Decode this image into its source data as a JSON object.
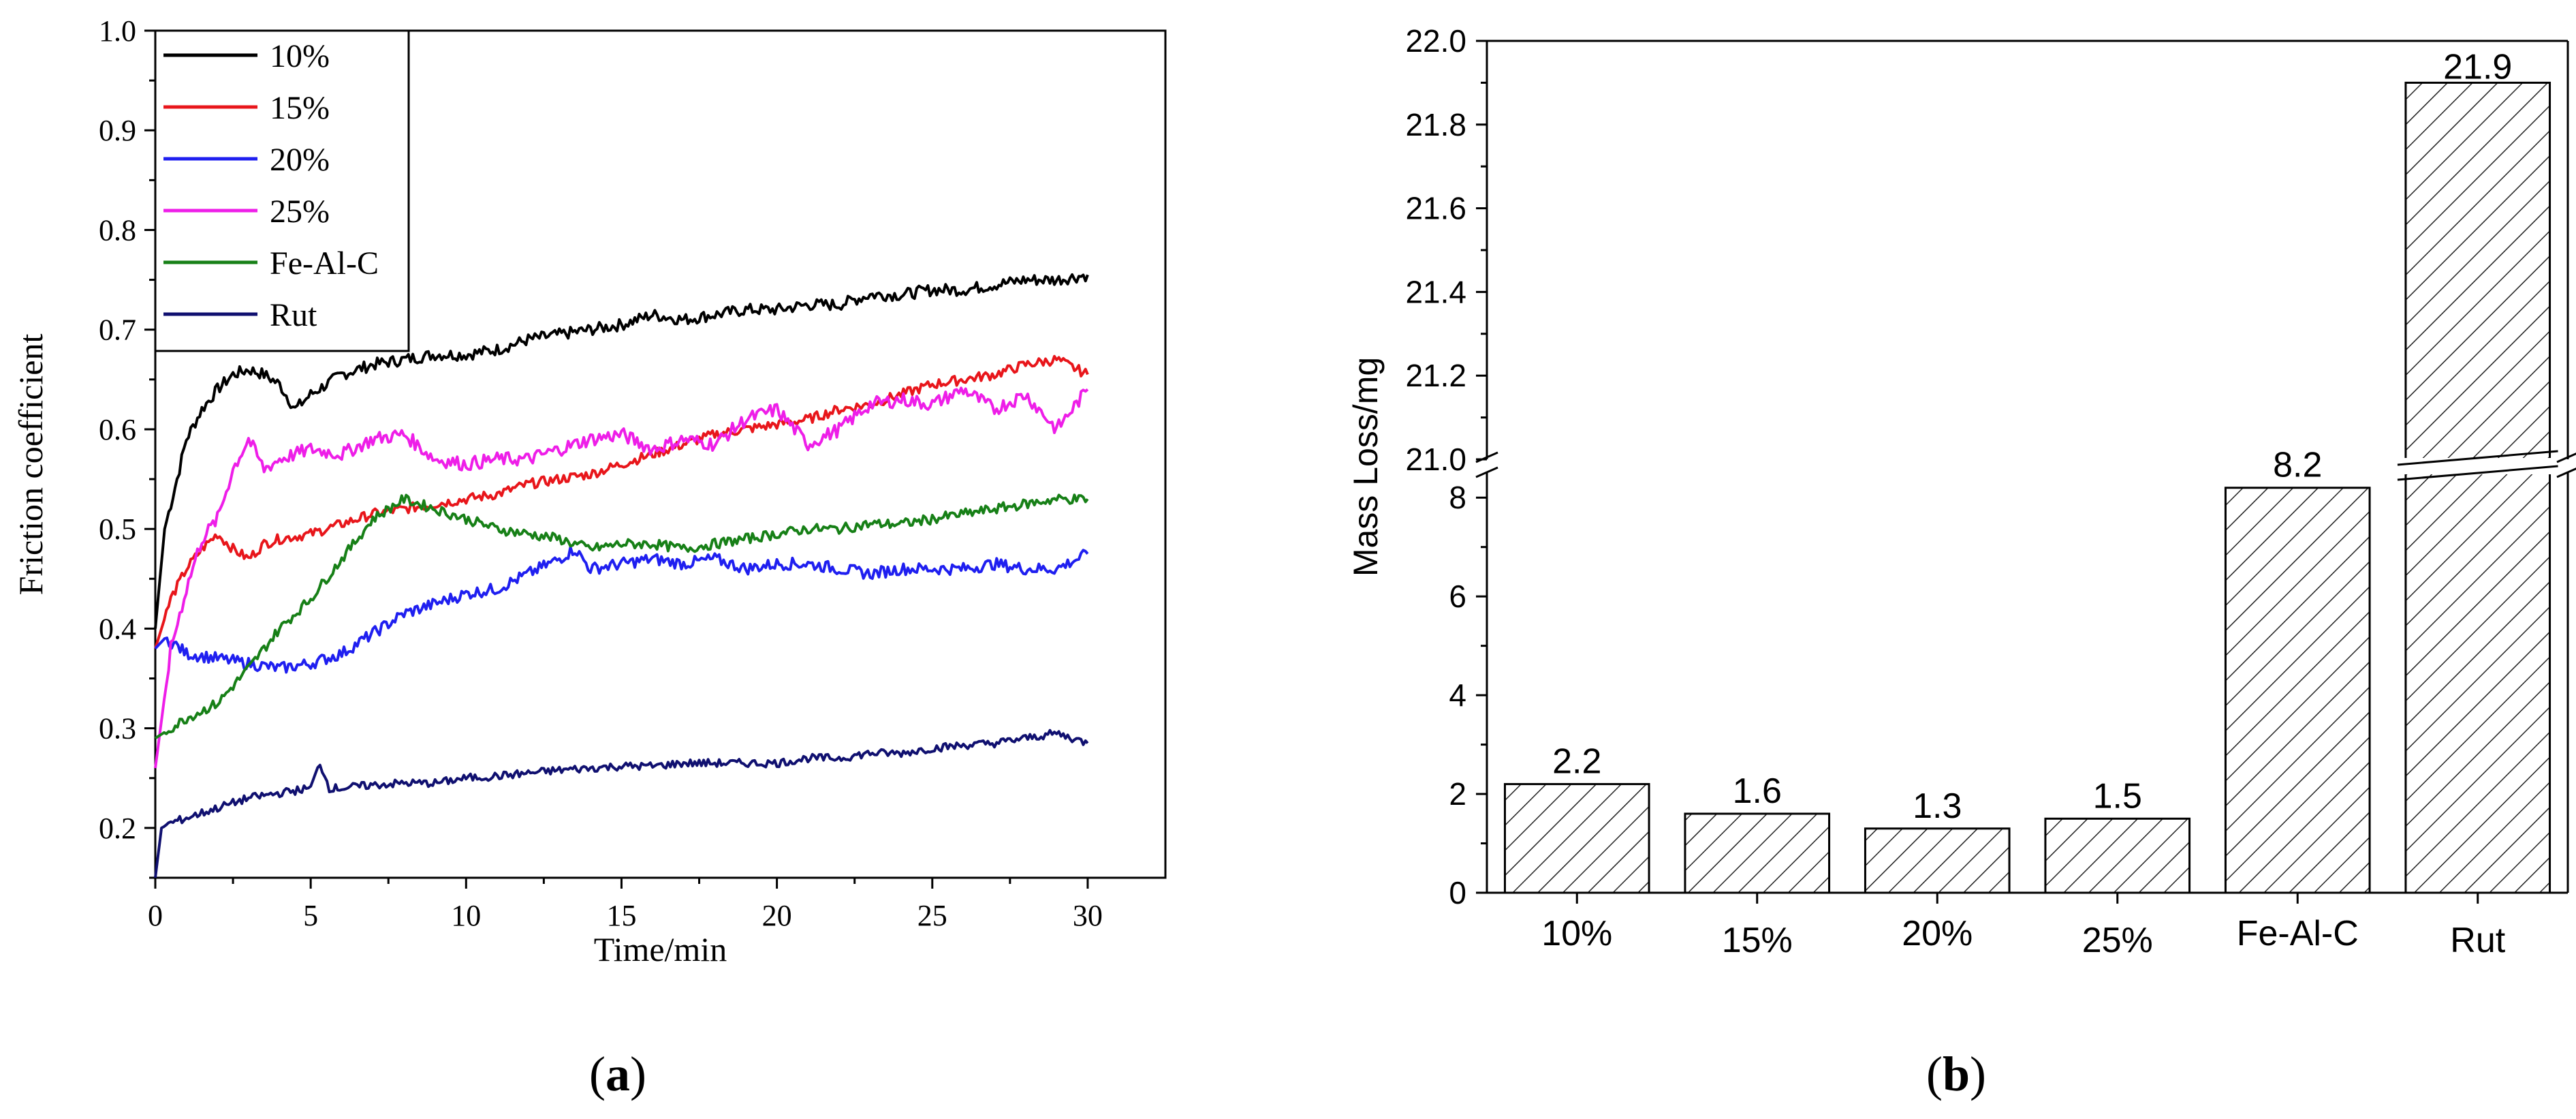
{
  "panel_labels": {
    "a": "a",
    "b": "b"
  },
  "chart_data": [
    {
      "type": "line",
      "xlabel": "Time/min",
      "ylabel": "Friction coefficient",
      "xlim": [
        0,
        32.5
      ],
      "ylim": [
        0.15,
        1.0
      ],
      "x_ticks": [
        "0",
        "5",
        "10",
        "15",
        "20",
        "25",
        "30"
      ],
      "y_ticks": [
        "0.2",
        "0.3",
        "0.4",
        "0.5",
        "0.6",
        "0.7",
        "0.8",
        "0.9",
        "1.0"
      ],
      "grid": false,
      "legend_position": "top-left",
      "series": [
        {
          "name": "10%",
          "color": "#000000",
          "noise": 0.006,
          "points": [
            [
              0,
              0.4
            ],
            [
              0.3,
              0.5
            ],
            [
              0.7,
              0.55
            ],
            [
              1,
              0.59
            ],
            [
              1.5,
              0.62
            ],
            [
              2,
              0.64
            ],
            [
              2.5,
              0.655
            ],
            [
              3,
              0.66
            ],
            [
              3.5,
              0.655
            ],
            [
              4,
              0.645
            ],
            [
              4.5,
              0.62
            ],
            [
              5,
              0.635
            ],
            [
              6,
              0.655
            ],
            [
              7,
              0.665
            ],
            [
              8,
              0.67
            ],
            [
              9,
              0.675
            ],
            [
              10,
              0.675
            ],
            [
              11,
              0.68
            ],
            [
              12,
              0.69
            ],
            [
              13,
              0.695
            ],
            [
              14,
              0.7
            ],
            [
              15,
              0.705
            ],
            [
              16,
              0.715
            ],
            [
              17,
              0.71
            ],
            [
              18,
              0.715
            ],
            [
              19,
              0.72
            ],
            [
              20,
              0.72
            ],
            [
              21,
              0.725
            ],
            [
              22,
              0.725
            ],
            [
              23,
              0.735
            ],
            [
              24,
              0.735
            ],
            [
              25,
              0.74
            ],
            [
              26,
              0.74
            ],
            [
              27,
              0.745
            ],
            [
              28,
              0.75
            ],
            [
              29,
              0.75
            ],
            [
              30,
              0.755
            ]
          ]
        },
        {
          "name": "15%",
          "color": "#e8161b",
          "noise": 0.005,
          "points": [
            [
              0,
              0.38
            ],
            [
              0.5,
              0.43
            ],
            [
              1,
              0.46
            ],
            [
              1.5,
              0.48
            ],
            [
              2,
              0.495
            ],
            [
              2.5,
              0.48
            ],
            [
              3,
              0.47
            ],
            [
              3.5,
              0.485
            ],
            [
              4,
              0.49
            ],
            [
              5,
              0.495
            ],
            [
              6,
              0.505
            ],
            [
              7,
              0.515
            ],
            [
              8,
              0.52
            ],
            [
              9,
              0.525
            ],
            [
              10,
              0.53
            ],
            [
              11,
              0.535
            ],
            [
              12,
              0.545
            ],
            [
              13,
              0.55
            ],
            [
              14,
              0.555
            ],
            [
              15,
              0.565
            ],
            [
              16,
              0.575
            ],
            [
              17,
              0.585
            ],
            [
              18,
              0.595
            ],
            [
              19,
              0.6
            ],
            [
              20,
              0.605
            ],
            [
              21,
              0.61
            ],
            [
              22,
              0.62
            ],
            [
              23,
              0.625
            ],
            [
              24,
              0.635
            ],
            [
              25,
              0.645
            ],
            [
              26,
              0.65
            ],
            [
              27,
              0.655
            ],
            [
              28,
              0.665
            ],
            [
              29,
              0.67
            ],
            [
              30,
              0.655
            ]
          ]
        },
        {
          "name": "20%",
          "color": "#1f1ff0",
          "noise": 0.006,
          "points": [
            [
              0,
              0.38
            ],
            [
              0.3,
              0.39
            ],
            [
              0.6,
              0.385
            ],
            [
              1,
              0.375
            ],
            [
              2,
              0.37
            ],
            [
              3,
              0.365
            ],
            [
              4,
              0.36
            ],
            [
              5,
              0.365
            ],
            [
              6,
              0.375
            ],
            [
              7,
              0.395
            ],
            [
              8,
              0.415
            ],
            [
              9,
              0.425
            ],
            [
              10,
              0.435
            ],
            [
              11,
              0.44
            ],
            [
              12,
              0.455
            ],
            [
              13,
              0.47
            ],
            [
              13.5,
              0.48
            ],
            [
              14,
              0.46
            ],
            [
              15,
              0.465
            ],
            [
              16,
              0.47
            ],
            [
              17,
              0.465
            ],
            [
              18,
              0.47
            ],
            [
              19,
              0.46
            ],
            [
              20,
              0.465
            ],
            [
              21,
              0.465
            ],
            [
              22,
              0.46
            ],
            [
              23,
              0.455
            ],
            [
              24,
              0.46
            ],
            [
              25,
              0.46
            ],
            [
              26,
              0.46
            ],
            [
              27,
              0.465
            ],
            [
              28,
              0.46
            ],
            [
              29,
              0.46
            ],
            [
              30,
              0.475
            ]
          ]
        },
        {
          "name": "25%",
          "color": "#ee1ee8",
          "noise": 0.007,
          "points": [
            [
              0,
              0.26
            ],
            [
              0.5,
              0.38
            ],
            [
              1,
              0.44
            ],
            [
              1.5,
              0.49
            ],
            [
              2,
              0.51
            ],
            [
              2.5,
              0.56
            ],
            [
              3,
              0.59
            ],
            [
              3.5,
              0.56
            ],
            [
              4,
              0.57
            ],
            [
              5,
              0.58
            ],
            [
              6,
              0.575
            ],
            [
              7,
              0.59
            ],
            [
              8,
              0.595
            ],
            [
              9,
              0.57
            ],
            [
              10,
              0.565
            ],
            [
              11,
              0.57
            ],
            [
              12,
              0.57
            ],
            [
              13,
              0.58
            ],
            [
              14,
              0.59
            ],
            [
              15,
              0.595
            ],
            [
              16,
              0.58
            ],
            [
              17,
              0.59
            ],
            [
              18,
              0.585
            ],
            [
              19,
              0.61
            ],
            [
              20,
              0.62
            ],
            [
              21,
              0.585
            ],
            [
              22,
              0.6
            ],
            [
              23,
              0.625
            ],
            [
              24,
              0.63
            ],
            [
              25,
              0.625
            ],
            [
              26,
              0.64
            ],
            [
              27,
              0.62
            ],
            [
              28,
              0.635
            ],
            [
              29,
              0.6
            ],
            [
              30,
              0.64
            ]
          ]
        },
        {
          "name": "Fe-Al-C",
          "color": "#178017",
          "noise": 0.005,
          "points": [
            [
              0,
              0.29
            ],
            [
              0.5,
              0.3
            ],
            [
              1,
              0.31
            ],
            [
              2,
              0.325
            ],
            [
              3,
              0.36
            ],
            [
              4,
              0.4
            ],
            [
              5,
              0.43
            ],
            [
              6,
              0.47
            ],
            [
              7,
              0.51
            ],
            [
              8,
              0.53
            ],
            [
              8.5,
              0.525
            ],
            [
              9,
              0.52
            ],
            [
              10,
              0.51
            ],
            [
              11,
              0.5
            ],
            [
              12,
              0.495
            ],
            [
              13,
              0.49
            ],
            [
              14,
              0.48
            ],
            [
              15,
              0.485
            ],
            [
              16,
              0.485
            ],
            [
              17,
              0.48
            ],
            [
              18,
              0.485
            ],
            [
              19,
              0.49
            ],
            [
              20,
              0.495
            ],
            [
              21,
              0.5
            ],
            [
              22,
              0.5
            ],
            [
              23,
              0.505
            ],
            [
              24,
              0.505
            ],
            [
              25,
              0.51
            ],
            [
              26,
              0.515
            ],
            [
              27,
              0.52
            ],
            [
              28,
              0.525
            ],
            [
              29,
              0.53
            ],
            [
              30,
              0.53
            ]
          ]
        },
        {
          "name": "Rut",
          "color": "#101070",
          "noise": 0.004,
          "points": [
            [
              0,
              0.15
            ],
            [
              0.2,
              0.2
            ],
            [
              0.5,
              0.205
            ],
            [
              1,
              0.21
            ],
            [
              2,
              0.22
            ],
            [
              3,
              0.23
            ],
            [
              4,
              0.235
            ],
            [
              5,
              0.24
            ],
            [
              5.3,
              0.265
            ],
            [
              5.6,
              0.24
            ],
            [
              6,
              0.24
            ],
            [
              7,
              0.243
            ],
            [
              8,
              0.245
            ],
            [
              9,
              0.245
            ],
            [
              10,
              0.25
            ],
            [
              11,
              0.252
            ],
            [
              12,
              0.255
            ],
            [
              13,
              0.258
            ],
            [
              14,
              0.26
            ],
            [
              15,
              0.262
            ],
            [
              16,
              0.262
            ],
            [
              17,
              0.265
            ],
            [
              18,
              0.265
            ],
            [
              19,
              0.265
            ],
            [
              20,
              0.265
            ],
            [
              21,
              0.27
            ],
            [
              22,
              0.27
            ],
            [
              23,
              0.275
            ],
            [
              24,
              0.275
            ],
            [
              25,
              0.28
            ],
            [
              26,
              0.283
            ],
            [
              27,
              0.285
            ],
            [
              28,
              0.29
            ],
            [
              29,
              0.295
            ],
            [
              30,
              0.285
            ]
          ]
        }
      ]
    },
    {
      "type": "bar",
      "ylabel": "Mass Loss/mg",
      "categories": [
        "10%",
        "15%",
        "20%",
        "25%",
        "Fe-Al-C",
        "Rut"
      ],
      "values": [
        2.2,
        1.6,
        1.3,
        1.5,
        8.2,
        21.9
      ],
      "value_labels": [
        "2.2",
        "1.6",
        "1.3",
        "1.5",
        "8.2",
        "21.9"
      ],
      "y_axis_break": {
        "lower_ylim": [
          0,
          8.5
        ],
        "upper_ylim": [
          21.0,
          22.0
        ]
      },
      "y_ticks_lower": [
        "0",
        "2",
        "4",
        "6",
        "8"
      ],
      "y_ticks_upper": [
        "21.0",
        "21.2",
        "21.4",
        "21.6",
        "21.8",
        "22.0"
      ],
      "bar_fill": "diagonal-hatch",
      "grid": false
    }
  ]
}
